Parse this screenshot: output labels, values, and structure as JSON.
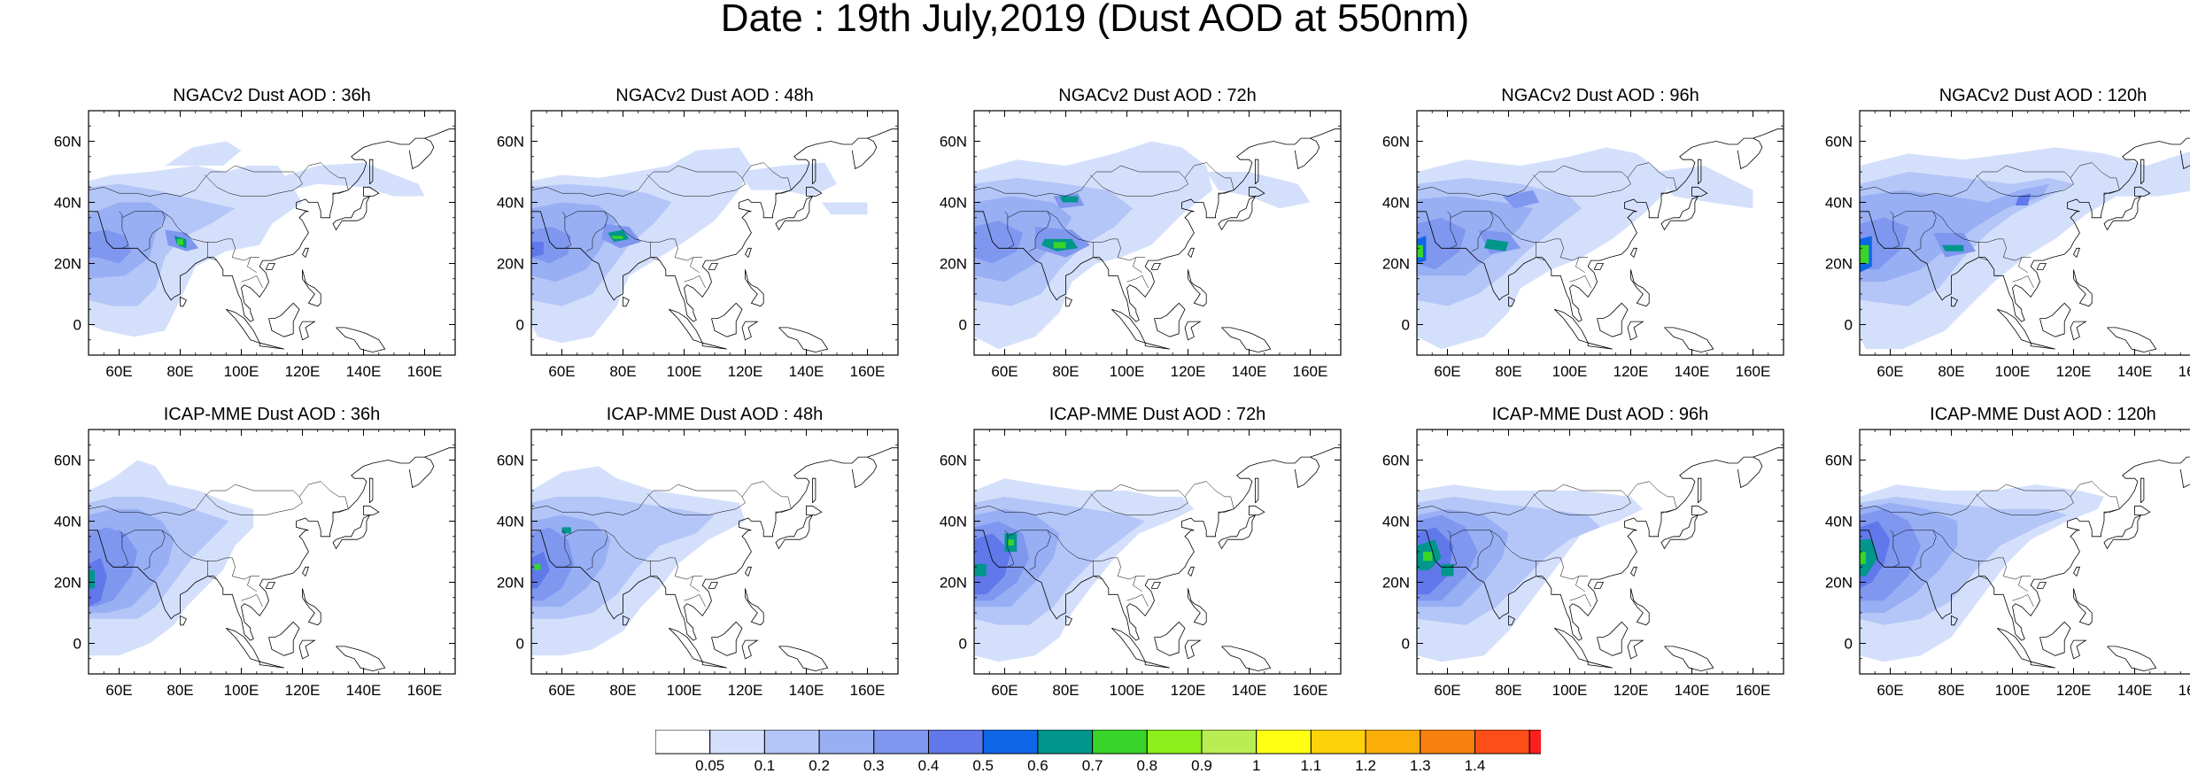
{
  "title": "Date : 19th July,2019 (Dust AOD at 550nm)",
  "panels": [
    {
      "title": "NGACv2 Dust AOD : 36h",
      "model": "NGACv2",
      "lead": "36h"
    },
    {
      "title": "NGACv2 Dust AOD : 48h",
      "model": "NGACv2",
      "lead": "48h"
    },
    {
      "title": "NGACv2 Dust AOD : 72h",
      "model": "NGACv2",
      "lead": "72h"
    },
    {
      "title": "NGACv2 Dust AOD : 96h",
      "model": "NGACv2",
      "lead": "96h"
    },
    {
      "title": "NGACv2 Dust AOD : 120h",
      "model": "NGACv2",
      "lead": "120h"
    },
    {
      "title": "ICAP-MME Dust AOD : 36h",
      "model": "ICAP-MME",
      "lead": "36h"
    },
    {
      "title": "ICAP-MME Dust AOD : 48h",
      "model": "ICAP-MME",
      "lead": "48h"
    },
    {
      "title": "ICAP-MME Dust AOD : 72h",
      "model": "ICAP-MME",
      "lead": "72h"
    },
    {
      "title": "ICAP-MME Dust AOD : 96h",
      "model": "ICAP-MME",
      "lead": "96h"
    },
    {
      "title": "ICAP-MME Dust AOD : 120h",
      "model": "ICAP-MME",
      "lead": "120h"
    }
  ],
  "map": {
    "lon_range": [
      50,
      170
    ],
    "lat_range": [
      -10,
      70
    ],
    "lon_ticks": [
      "60E",
      "80E",
      "100E",
      "120E",
      "140E",
      "160E"
    ],
    "lon_tick_values": [
      60,
      80,
      100,
      120,
      140,
      160
    ],
    "lat_ticks": [
      "0",
      "20N",
      "40N",
      "60N"
    ],
    "lat_tick_values": [
      0,
      20,
      40,
      60
    ]
  },
  "colorbar": {
    "labels": [
      "0.05",
      "0.1",
      "0.2",
      "0.3",
      "0.4",
      "0.5",
      "0.6",
      "0.7",
      "0.8",
      "0.9",
      "1",
      "1.1",
      "1.2",
      "1.3",
      "1.4"
    ],
    "colors": [
      "#ffffff",
      "#d4e0fb",
      "#b4c6f7",
      "#98aff4",
      "#7f97ef",
      "#6078ea",
      "#0e67e6",
      "#00968c",
      "#38d42a",
      "#8cef1c",
      "#b9ee52",
      "#ffff14",
      "#fed20a",
      "#fbae0a",
      "#f88010",
      "#fe4e18",
      "#fb1f1f"
    ]
  }
}
